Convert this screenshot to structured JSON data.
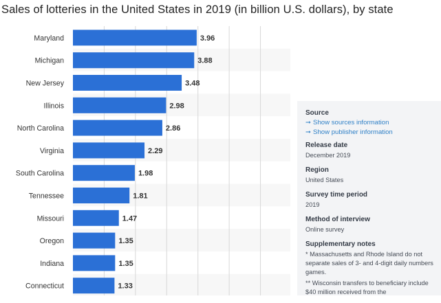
{
  "title": "Sales of lotteries in the United States in 2019 (in billion U.S. dollars), by state",
  "chart_data": {
    "type": "bar",
    "orientation": "horizontal",
    "title": "Sales of lotteries in the United States in 2019 (in billion U.S. dollars), by state",
    "categories": [
      "Maryland",
      "Michigan",
      "New Jersey",
      "Illinois",
      "North Carolina",
      "Virginia",
      "South Carolina",
      "Tennessee",
      "Missouri",
      "Oregon",
      "Indiana",
      "Connecticut"
    ],
    "values": [
      3.96,
      3.88,
      3.48,
      2.98,
      2.86,
      2.29,
      1.98,
      1.81,
      1.47,
      1.35,
      1.35,
      1.33
    ],
    "value_labels": [
      "3.96",
      "3.88",
      "3.48",
      "2.98",
      "2.86",
      "2.29",
      "1.98",
      "1.81",
      "1.47",
      "1.35",
      "1.35",
      "1.33"
    ],
    "xlim": [
      0,
      7
    ],
    "grid": true,
    "bar_color": "#2b70d6",
    "xlabel": "",
    "ylabel": ""
  },
  "sidebar": {
    "source": {
      "title": "Source",
      "links": [
        "Show sources information",
        "Show publisher information"
      ]
    },
    "release_date": {
      "title": "Release date",
      "value": "December 2019"
    },
    "region": {
      "title": "Region",
      "value": "United States"
    },
    "survey_period": {
      "title": "Survey time period",
      "value": "2019"
    },
    "method": {
      "title": "Method of interview",
      "value": "Online survey"
    },
    "supplementary": {
      "title": "Supplementary notes",
      "note1": "* Massachusetts and Rhode Island do not separate sales of 3- and 4-digit daily numbers games.",
      "note2": "** Wisconsin transfers to beneficiary include $40 million received from the"
    }
  },
  "colors": {
    "accent": "#2b70d6",
    "link": "#2d7fc6",
    "panel_bg": "#f3f4f6"
  }
}
